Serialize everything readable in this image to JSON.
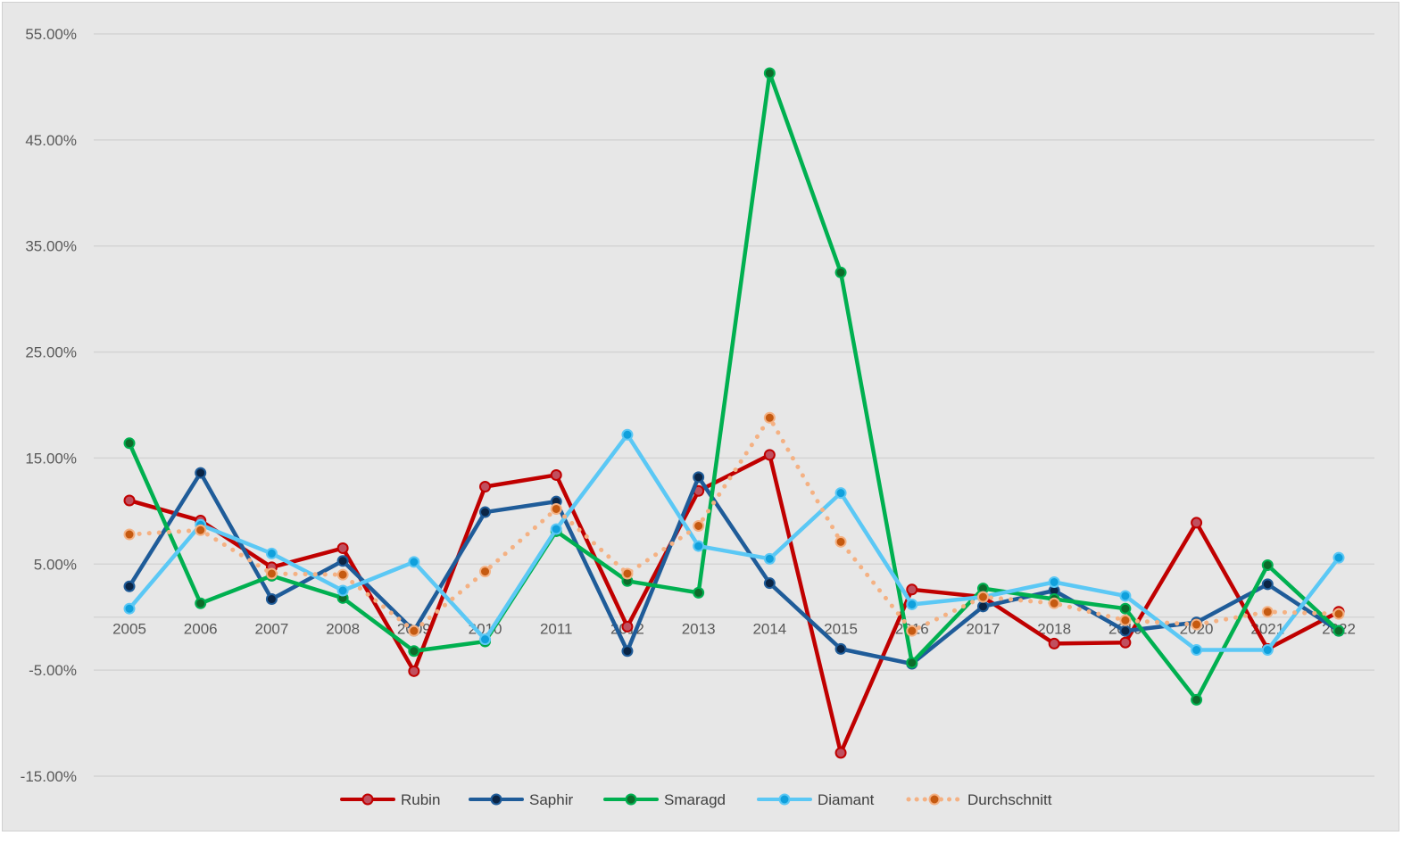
{
  "chart_data": {
    "type": "line",
    "title": "",
    "xlabel": "",
    "ylabel": "",
    "ylim": [
      -15,
      55
    ],
    "yticks": [
      -15,
      -5,
      5,
      15,
      25,
      35,
      45,
      55
    ],
    "ytick_labels": [
      "-15.00%",
      "-5.00%",
      "5.00%",
      "15.00%",
      "25.00%",
      "35.00%",
      "45.00%",
      "55.00%"
    ],
    "grid": true,
    "legend": "bottom",
    "categories": [
      "2005",
      "2006",
      "2007",
      "2008",
      "2009",
      "2010",
      "2011",
      "2012",
      "2013",
      "2014",
      "2015",
      "2016",
      "2017",
      "2018",
      "2019",
      "2020",
      "2021",
      "2022"
    ],
    "series": [
      {
        "name": "Rubin",
        "color": "#C00000",
        "marker": "#C0505F",
        "dashed": false,
        "values": [
          11.0,
          9.1,
          4.7,
          6.5,
          -5.1,
          12.3,
          13.4,
          -0.9,
          11.9,
          15.3,
          -12.8,
          2.6,
          1.9,
          -2.5,
          -2.4,
          8.9,
          -3.0,
          0.5
        ]
      },
      {
        "name": "Saphir",
        "color": "#1F5C99",
        "marker": "#0B2545",
        "dashed": false,
        "values": [
          2.9,
          13.6,
          1.7,
          5.3,
          -1.3,
          9.9,
          10.9,
          -3.2,
          13.2,
          3.2,
          -3.0,
          -4.4,
          1.0,
          2.5,
          -1.3,
          -0.5,
          3.1,
          -1.3
        ]
      },
      {
        "name": "Smaragd",
        "color": "#00B050",
        "marker": "#0E6B2B",
        "dashed": false,
        "values": [
          16.4,
          1.3,
          3.9,
          1.8,
          -3.2,
          -2.3,
          8.1,
          3.4,
          2.3,
          51.3,
          32.5,
          -4.3,
          2.7,
          1.7,
          0.8,
          -7.8,
          4.9,
          -1.3
        ]
      },
      {
        "name": "Diamant",
        "color": "#5BC8F5",
        "marker": "#10A0DC",
        "dashed": false,
        "values": [
          0.8,
          8.7,
          6.0,
          2.5,
          5.2,
          -2.1,
          8.3,
          17.2,
          6.7,
          5.5,
          11.7,
          1.2,
          1.9,
          3.3,
          2.0,
          -3.1,
          -3.1,
          5.6
        ]
      },
      {
        "name": "Durchschnitt",
        "color": "#F4B183",
        "marker": "#C55A11",
        "dashed": true,
        "values": [
          7.8,
          8.2,
          4.1,
          4.0,
          -1.3,
          4.3,
          10.2,
          4.1,
          8.6,
          18.8,
          7.1,
          -1.3,
          1.9,
          1.3,
          -0.3,
          -0.7,
          0.5,
          0.3
        ]
      }
    ]
  }
}
